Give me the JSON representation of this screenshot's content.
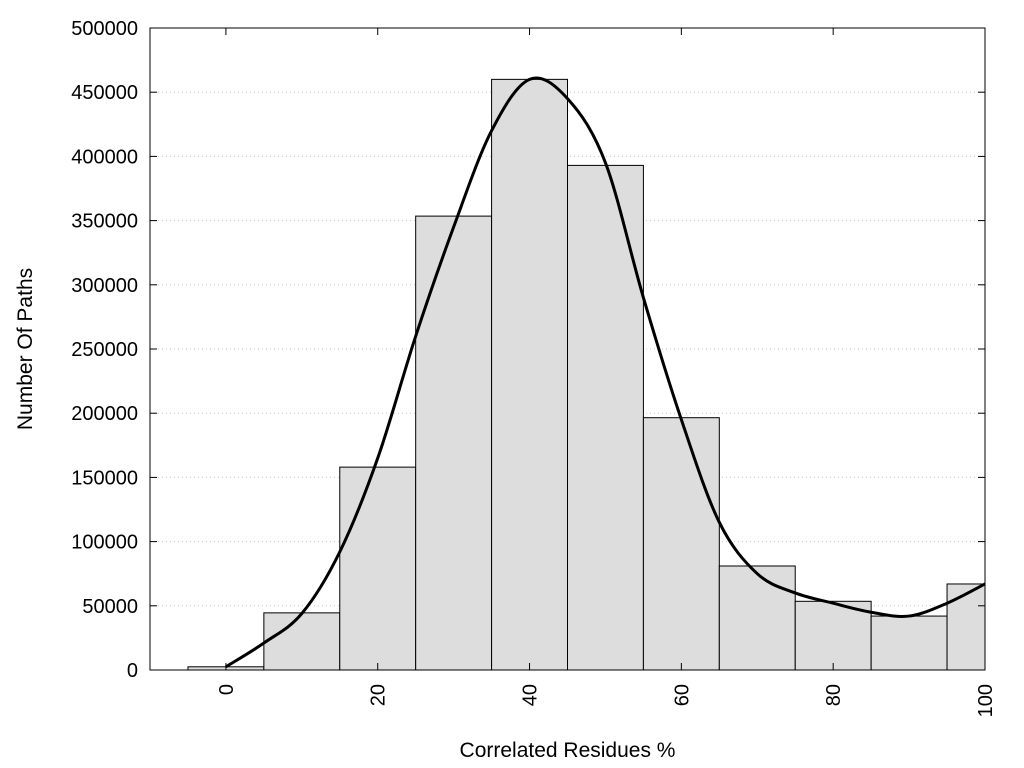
{
  "chart_data": {
    "type": "bar",
    "title": "",
    "xlabel": "Correlated Residues %",
    "ylabel": "Number Of Paths",
    "xlim": [
      -10,
      100
    ],
    "ylim": [
      0,
      500000
    ],
    "grid": "horizontal dotted",
    "x_ticks": [
      0,
      20,
      40,
      60,
      80,
      100
    ],
    "x_tick_labels": [
      "0",
      "20",
      "40",
      "60",
      "80",
      "100"
    ],
    "y_ticks": [
      0,
      50000,
      100000,
      150000,
      200000,
      250000,
      300000,
      350000,
      400000,
      450000,
      500000
    ],
    "y_tick_labels": [
      "0",
      "50000",
      "100000",
      "150000",
      "200000",
      "250000",
      "300000",
      "350000",
      "400000",
      "450000",
      "500000"
    ],
    "bins": [
      {
        "start": -5,
        "end": 5,
        "value": 2500
      },
      {
        "start": 5,
        "end": 15,
        "value": 44500
      },
      {
        "start": 15,
        "end": 25,
        "value": 158000
      },
      {
        "start": 25,
        "end": 35,
        "value": 353500
      },
      {
        "start": 35,
        "end": 45,
        "value": 460000
      },
      {
        "start": 45,
        "end": 55,
        "value": 393000
      },
      {
        "start": 55,
        "end": 65,
        "value": 196500
      },
      {
        "start": 65,
        "end": 75,
        "value": 81000
      },
      {
        "start": 75,
        "end": 85,
        "value": 53500
      },
      {
        "start": 85,
        "end": 95,
        "value": 42000
      },
      {
        "start": 95,
        "end": 105,
        "value": 67000
      }
    ],
    "curve": {
      "x": [
        0,
        5,
        10,
        15,
        20,
        25,
        30,
        35,
        40,
        45,
        50,
        55,
        60,
        65,
        70,
        75,
        80,
        85,
        90,
        95,
        100
      ],
      "y": [
        2500,
        21000,
        44000,
        92000,
        165000,
        260000,
        345000,
        420000,
        460000,
        445000,
        395000,
        290000,
        195000,
        115000,
        75000,
        60000,
        52000,
        45000,
        42000,
        52000,
        67000
      ]
    },
    "colors": {
      "bar_fill": "#dddddd",
      "bar_stroke": "#000000",
      "curve": "#000000",
      "grid": "#c8c8c8"
    }
  }
}
